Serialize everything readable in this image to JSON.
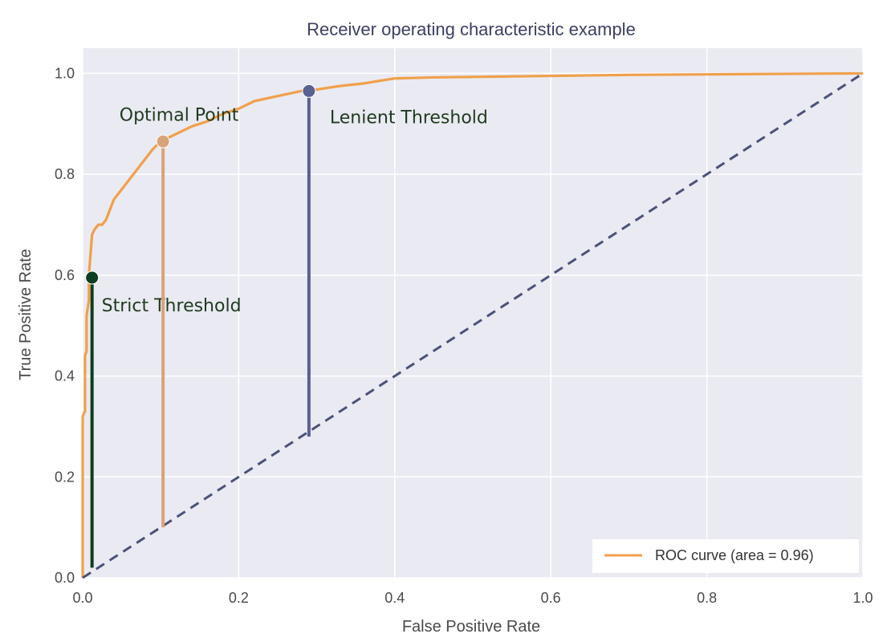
{
  "chart_data": {
    "type": "line",
    "title": "Receiver operating characteristic example",
    "xlabel": "False Positive Rate",
    "ylabel": "True Positive Rate",
    "xlim": [
      0.0,
      1.0
    ],
    "ylim": [
      0.0,
      1.05
    ],
    "xticks": [
      "0.0",
      "0.2",
      "0.4",
      "0.6",
      "0.8",
      "1.0"
    ],
    "yticks": [
      "0.0",
      "0.2",
      "0.4",
      "0.6",
      "0.8",
      "1.0"
    ],
    "xtick_values": [
      0.0,
      0.2,
      0.4,
      0.6,
      0.8,
      1.0
    ],
    "ytick_values": [
      0.0,
      0.2,
      0.4,
      0.6,
      0.8,
      1.0
    ],
    "grid": true,
    "legend_position": "lower-right",
    "series": [
      {
        "name": "ROC curve (area = 0.96)",
        "color": "#f0a04b",
        "x": [
          0.0,
          0.0,
          0.003,
          0.003,
          0.005,
          0.005,
          0.008,
          0.008,
          0.01,
          0.012,
          0.015,
          0.02,
          0.025,
          0.03,
          0.035,
          0.04,
          0.05,
          0.06,
          0.07,
          0.08,
          0.09,
          0.1,
          0.12,
          0.14,
          0.16,
          0.18,
          0.2,
          0.22,
          0.25,
          0.28,
          0.3,
          0.33,
          0.36,
          0.38,
          0.4,
          0.45,
          0.5,
          0.55,
          0.6,
          0.7,
          0.8,
          0.9,
          1.0
        ],
        "y": [
          0.0,
          0.32,
          0.33,
          0.44,
          0.45,
          0.52,
          0.55,
          0.6,
          0.64,
          0.68,
          0.69,
          0.7,
          0.7,
          0.71,
          0.73,
          0.75,
          0.77,
          0.79,
          0.81,
          0.83,
          0.85,
          0.865,
          0.88,
          0.895,
          0.905,
          0.92,
          0.93,
          0.945,
          0.955,
          0.965,
          0.968,
          0.975,
          0.98,
          0.985,
          0.99,
          0.992,
          0.993,
          0.994,
          0.995,
          0.997,
          0.998,
          0.999,
          1.0
        ]
      },
      {
        "name": "",
        "color": "#4b5278",
        "dashed": true,
        "x": [
          0.0,
          1.0
        ],
        "y": [
          0.0,
          1.0
        ]
      }
    ],
    "annotations": [
      {
        "label": "Strict Threshold",
        "x": 0.012,
        "y": 0.595,
        "stem_bottom": 0.02,
        "color": "#0f3d1f"
      },
      {
        "label": "Optimal Point",
        "x": 0.103,
        "y": 0.865,
        "stem_bottom": 0.1,
        "color": "#d9a37a"
      },
      {
        "label": "Lenient Threshold",
        "x": 0.29,
        "y": 0.965,
        "stem_bottom": 0.28,
        "color": "#5a6090"
      }
    ]
  }
}
